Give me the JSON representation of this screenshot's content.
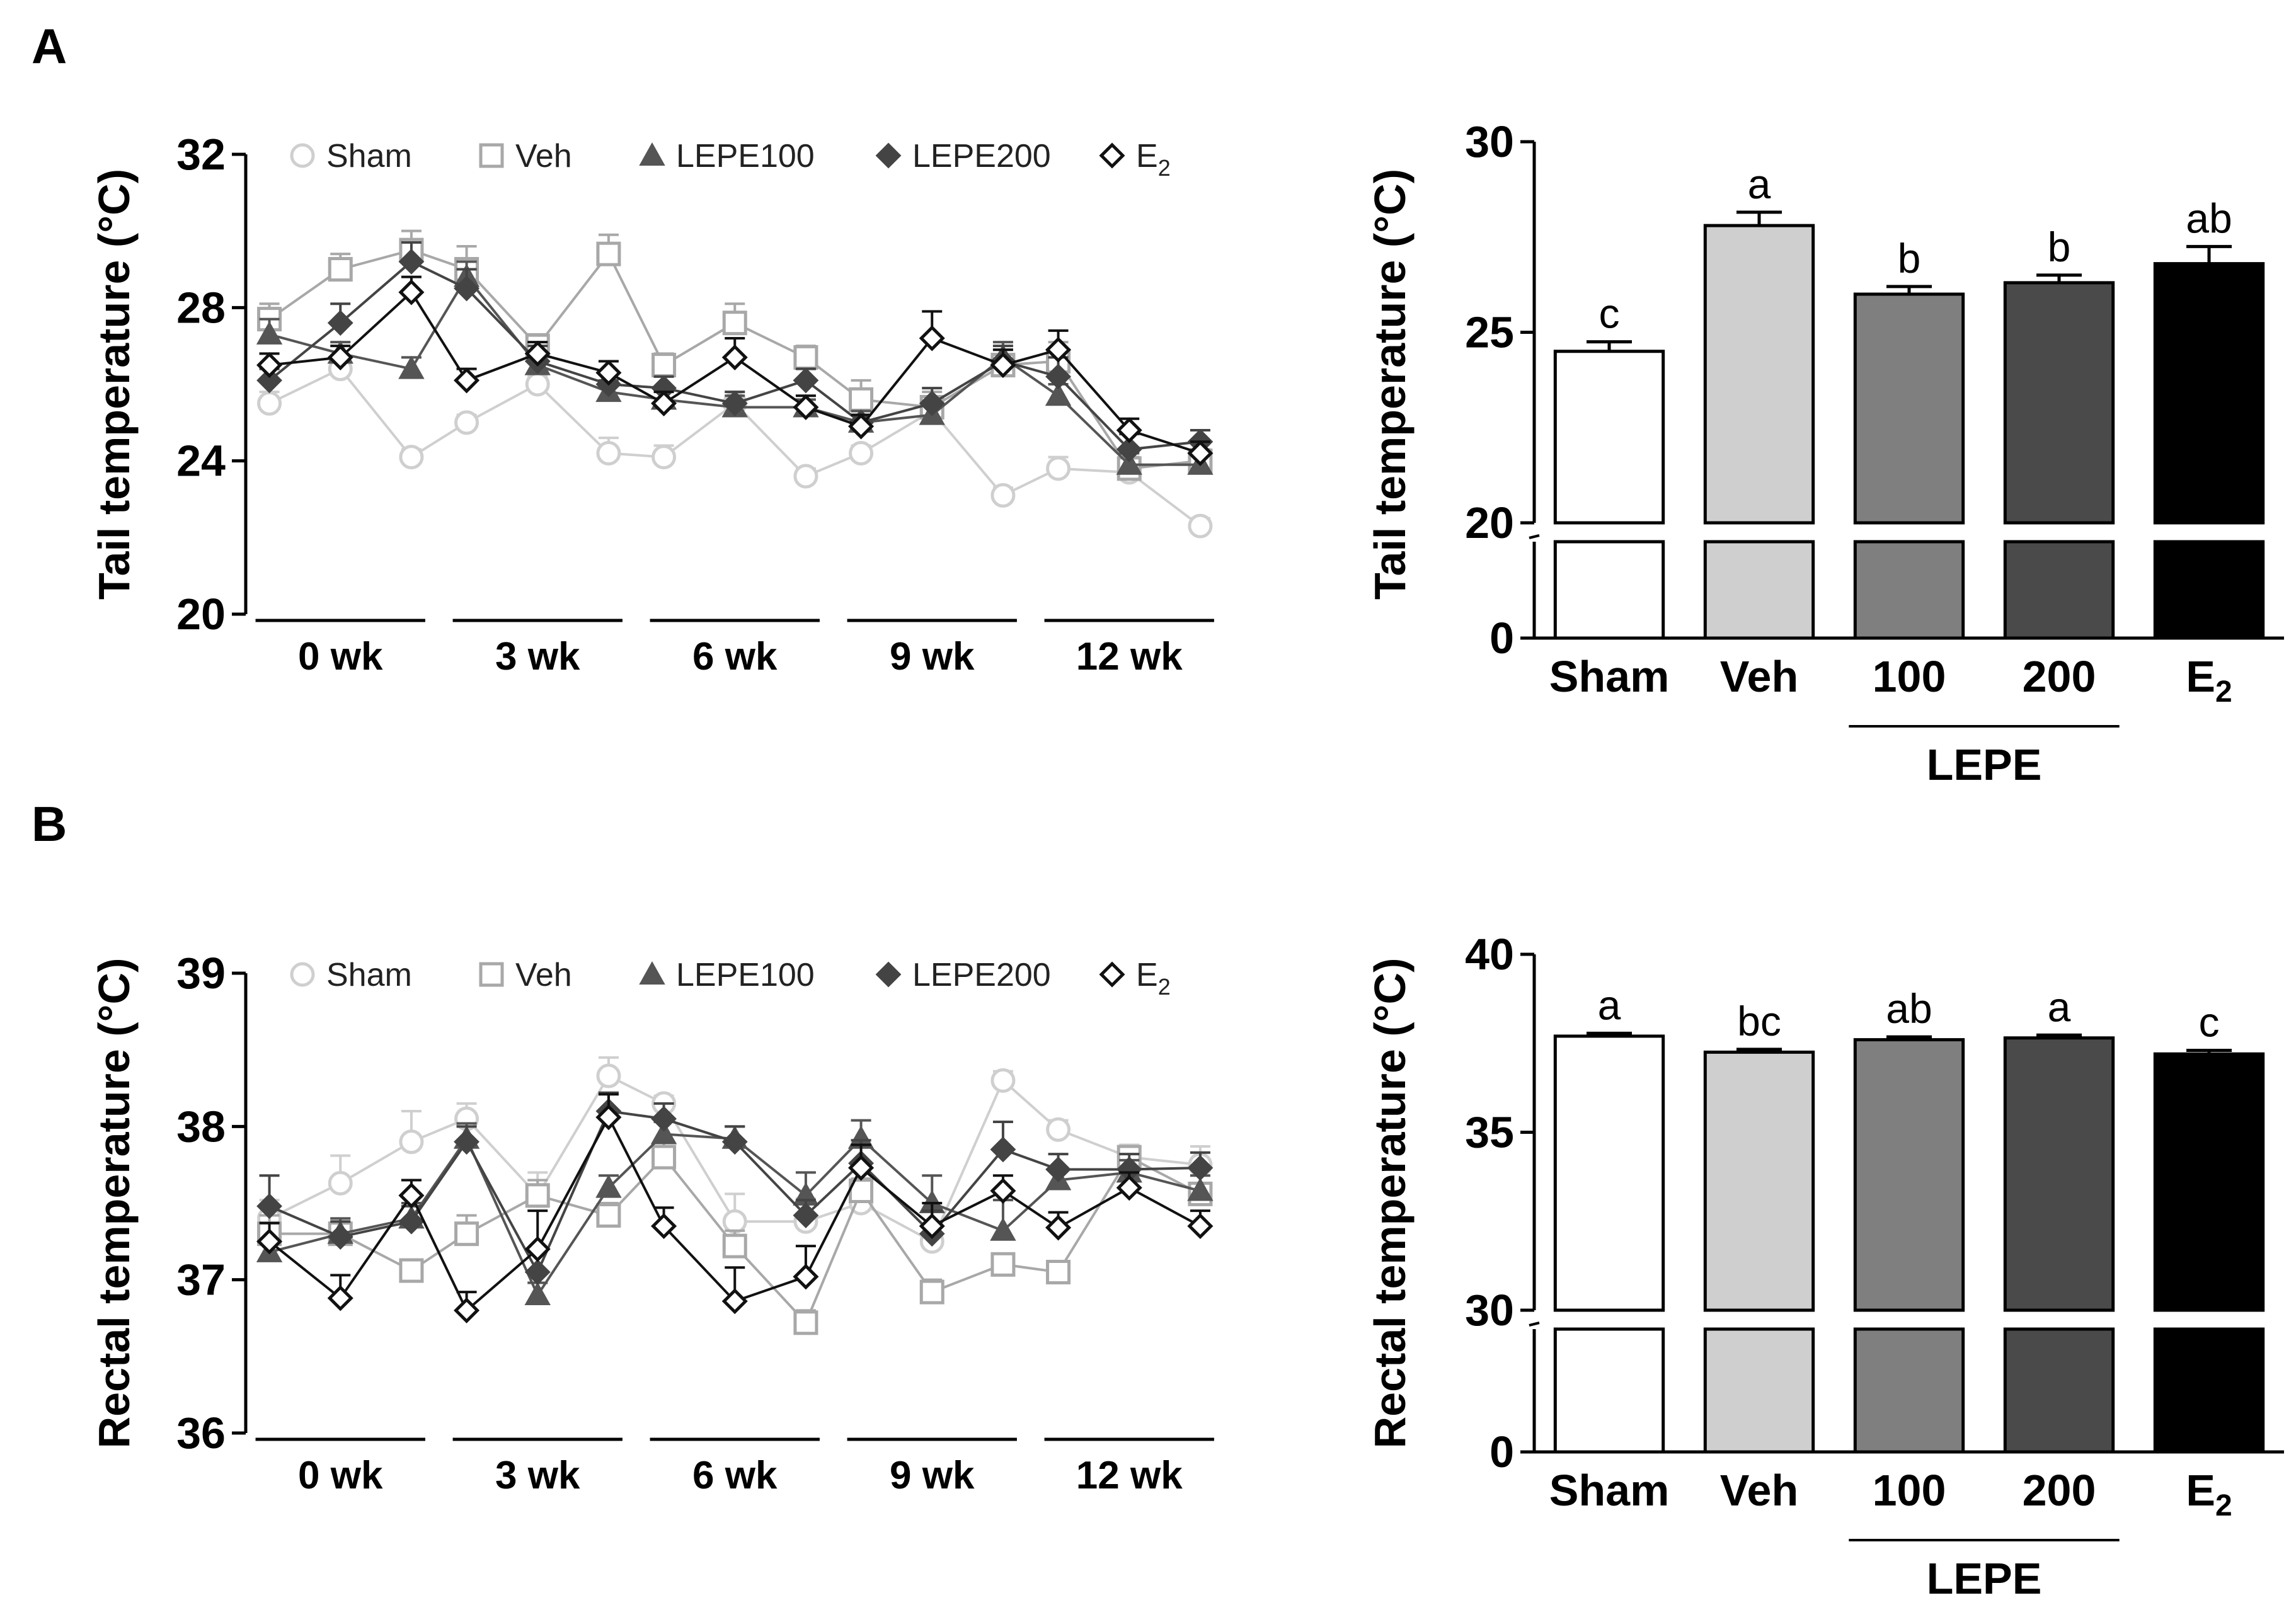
{
  "panels": [
    {
      "label": "A"
    },
    {
      "label": "B"
    }
  ],
  "colors": {
    "Sham": "#cfcfcf",
    "Veh": "#a8a8a8",
    "LEPE100": "#555555",
    "LEPE200": "#444444",
    "E2": "#111111",
    "bar_Sham": "#ffffff",
    "bar_Veh": "#cfcfcf",
    "bar_100": "#7f7f7f",
    "bar_200": "#4a4a4a",
    "bar_E2": "#000000"
  },
  "chart_data": [
    {
      "id": "tail_line",
      "type": "line",
      "panel": "A",
      "ylabel": "Tail temperature (°C)",
      "ylim": [
        20,
        32
      ],
      "yticks": [
        20,
        24,
        28,
        32
      ],
      "groups": [
        "0 wk",
        "3 wk",
        "6 wk",
        "9 wk",
        "12 wk"
      ],
      "points_per_group": 3,
      "legend": [
        {
          "key": "Sham",
          "label": "Sham",
          "marker": "circle"
        },
        {
          "key": "Veh",
          "label": "Veh",
          "marker": "square"
        },
        {
          "key": "LEPE100",
          "label": "LEPE100",
          "marker": "triangle"
        },
        {
          "key": "LEPE200",
          "label": "LEPE200",
          "marker": "diamond-filled"
        },
        {
          "key": "E2",
          "label": "E",
          "sub": "2",
          "marker": "diamond-open"
        }
      ],
      "series": [
        {
          "key": "Sham",
          "values": [
            25.5,
            26.4,
            24.1,
            25.0,
            26.0,
            24.2,
            24.1,
            25.5,
            23.6,
            24.2,
            25.3,
            23.1,
            23.8,
            23.7,
            22.3
          ],
          "errors": [
            0.3,
            0.3,
            0.2,
            0.2,
            0.2,
            0.4,
            0.3,
            0.3,
            0.2,
            0.2,
            0.3,
            0.2,
            0.3,
            0.2,
            0.2
          ]
        },
        {
          "key": "Veh",
          "values": [
            27.7,
            29.0,
            29.5,
            29.0,
            27.0,
            29.4,
            26.5,
            27.6,
            26.7,
            25.6,
            25.4,
            26.5,
            26.6,
            23.8,
            24.0
          ],
          "errors": [
            0.4,
            0.4,
            0.5,
            0.6,
            0.3,
            0.5,
            0.3,
            0.5,
            0.3,
            0.5,
            0.4,
            0.4,
            0.5,
            0.3,
            0.3
          ]
        },
        {
          "key": "LEPE100",
          "values": [
            27.3,
            26.8,
            26.4,
            28.8,
            26.5,
            25.8,
            25.6,
            25.4,
            25.4,
            25.0,
            25.2,
            26.7,
            25.7,
            23.9,
            23.9
          ],
          "errors": [
            0.4,
            0.3,
            0.3,
            0.4,
            0.3,
            0.3,
            0.3,
            0.3,
            0.2,
            0.3,
            0.3,
            0.4,
            0.3,
            0.3,
            0.3
          ]
        },
        {
          "key": "LEPE200",
          "values": [
            26.1,
            27.6,
            29.2,
            28.5,
            26.6,
            26.0,
            25.9,
            25.5,
            26.1,
            25.0,
            25.5,
            26.6,
            26.2,
            24.3,
            24.5
          ],
          "errors": [
            0.3,
            0.5,
            0.5,
            0.5,
            0.4,
            0.3,
            0.3,
            0.3,
            0.3,
            0.2,
            0.4,
            0.4,
            0.5,
            0.4,
            0.3
          ]
        },
        {
          "key": "E2",
          "values": [
            26.5,
            26.7,
            28.4,
            26.1,
            26.8,
            26.3,
            25.5,
            26.7,
            25.4,
            24.9,
            27.2,
            26.5,
            26.9,
            24.8,
            24.2
          ],
          "errors": [
            0.3,
            0.3,
            0.4,
            0.3,
            0.3,
            0.3,
            0.3,
            0.5,
            0.3,
            0.3,
            0.7,
            0.4,
            0.5,
            0.3,
            0.3
          ]
        }
      ]
    },
    {
      "id": "tail_bar",
      "type": "bar",
      "panel": "A",
      "ylabel": "Tail temperature (°C)",
      "ylim": [
        0,
        30
      ],
      "axis_break": [
        0,
        20
      ],
      "yticks": [
        0,
        20,
        25,
        30
      ],
      "group_label": "LEPE",
      "categories": [
        {
          "label": "Sham"
        },
        {
          "label": "Veh"
        },
        {
          "label": "100"
        },
        {
          "label": "200"
        },
        {
          "label": "E",
          "sub": "2"
        }
      ],
      "values": [
        24.5,
        27.8,
        26.0,
        26.3,
        26.8
      ],
      "errors": [
        0.25,
        0.35,
        0.2,
        0.2,
        0.45
      ],
      "annotations": [
        "c",
        "a",
        "b",
        "b",
        "ab"
      ],
      "bar_colors": [
        "bar_Sham",
        "bar_Veh",
        "bar_100",
        "bar_200",
        "bar_E2"
      ]
    },
    {
      "id": "rectal_line",
      "type": "line",
      "panel": "B",
      "ylabel": "Rectal temperature (°C)",
      "ylim": [
        36,
        39
      ],
      "yticks": [
        36,
        37,
        38,
        39
      ],
      "groups": [
        "0 wk",
        "3 wk",
        "6 wk",
        "9 wk",
        "12 wk"
      ],
      "points_per_group": 3,
      "legend": [
        {
          "key": "Sham",
          "label": "Sham",
          "marker": "circle"
        },
        {
          "key": "Veh",
          "label": "Veh",
          "marker": "square"
        },
        {
          "key": "LEPE100",
          "label": "LEPE100",
          "marker": "triangle"
        },
        {
          "key": "LEPE200",
          "label": "LEPE200",
          "marker": "diamond-filled"
        },
        {
          "key": "E2",
          "label": "E",
          "sub": "2",
          "marker": "diamond-open"
        }
      ],
      "series": [
        {
          "key": "Sham",
          "values": [
            37.4,
            37.63,
            37.9,
            38.05,
            37.55,
            38.33,
            38.15,
            37.38,
            37.38,
            37.5,
            37.25,
            38.3,
            37.98,
            37.8,
            37.75
          ],
          "errors": [
            0.12,
            0.18,
            0.2,
            0.1,
            0.15,
            0.12,
            0.05,
            0.18,
            0.15,
            0.15,
            0.1,
            0.06,
            0.06,
            0.08,
            0.12
          ]
        },
        {
          "key": "Veh",
          "values": [
            37.3,
            37.3,
            37.06,
            37.3,
            37.55,
            37.42,
            37.8,
            37.22,
            36.72,
            37.58,
            36.92,
            37.1,
            37.05,
            37.8,
            37.56
          ],
          "errors": [
            0.12,
            0.1,
            0.06,
            0.12,
            0.1,
            0.08,
            0.1,
            0.1,
            0.08,
            0.08,
            0.08,
            0.05,
            0.06,
            0.06,
            0.06
          ]
        },
        {
          "key": "LEPE100",
          "values": [
            37.18,
            37.3,
            37.4,
            37.92,
            36.9,
            37.6,
            37.95,
            37.92,
            37.55,
            37.92,
            37.5,
            37.32,
            37.65,
            37.7,
            37.58
          ],
          "errors": [
            0.08,
            0.1,
            0.1,
            0.1,
            0.08,
            0.08,
            0.08,
            0.08,
            0.15,
            0.12,
            0.18,
            0.2,
            0.08,
            0.08,
            0.1
          ]
        },
        {
          "key": "LEPE200",
          "values": [
            37.48,
            37.28,
            37.38,
            37.9,
            37.05,
            38.1,
            38.05,
            37.9,
            37.42,
            37.76,
            37.3,
            37.85,
            37.72,
            37.72,
            37.73
          ],
          "errors": [
            0.2,
            0.1,
            0.1,
            0.1,
            0.15,
            0.12,
            0.1,
            0.1,
            0.1,
            0.15,
            0.15,
            0.18,
            0.1,
            0.1,
            0.1
          ]
        },
        {
          "key": "E2",
          "values": [
            37.25,
            36.88,
            37.55,
            36.8,
            37.2,
            38.06,
            37.35,
            36.86,
            37.02,
            37.73,
            37.35,
            37.58,
            37.34,
            37.6,
            37.35
          ],
          "errors": [
            0.12,
            0.15,
            0.1,
            0.12,
            0.25,
            0.15,
            0.12,
            0.22,
            0.2,
            0.15,
            0.15,
            0.1,
            0.1,
            0.1,
            0.1
          ]
        }
      ]
    },
    {
      "id": "rectal_bar",
      "type": "bar",
      "panel": "B",
      "ylabel": "Rectal temperature (°C)",
      "ylim": [
        0,
        40
      ],
      "axis_break": [
        0,
        30
      ],
      "yticks": [
        0,
        30,
        35,
        40
      ],
      "group_label": "LEPE",
      "categories": [
        {
          "label": "Sham"
        },
        {
          "label": "Veh"
        },
        {
          "label": "100"
        },
        {
          "label": "200"
        },
        {
          "label": "E",
          "sub": "2"
        }
      ],
      "values": [
        37.7,
        37.25,
        37.6,
        37.65,
        37.2
      ],
      "errors": [
        0.08,
        0.08,
        0.08,
        0.08,
        0.1
      ],
      "annotations": [
        "a",
        "bc",
        "ab",
        "a",
        "c"
      ],
      "bar_colors": [
        "bar_Sham",
        "bar_Veh",
        "bar_100",
        "bar_200",
        "bar_E2"
      ]
    }
  ]
}
